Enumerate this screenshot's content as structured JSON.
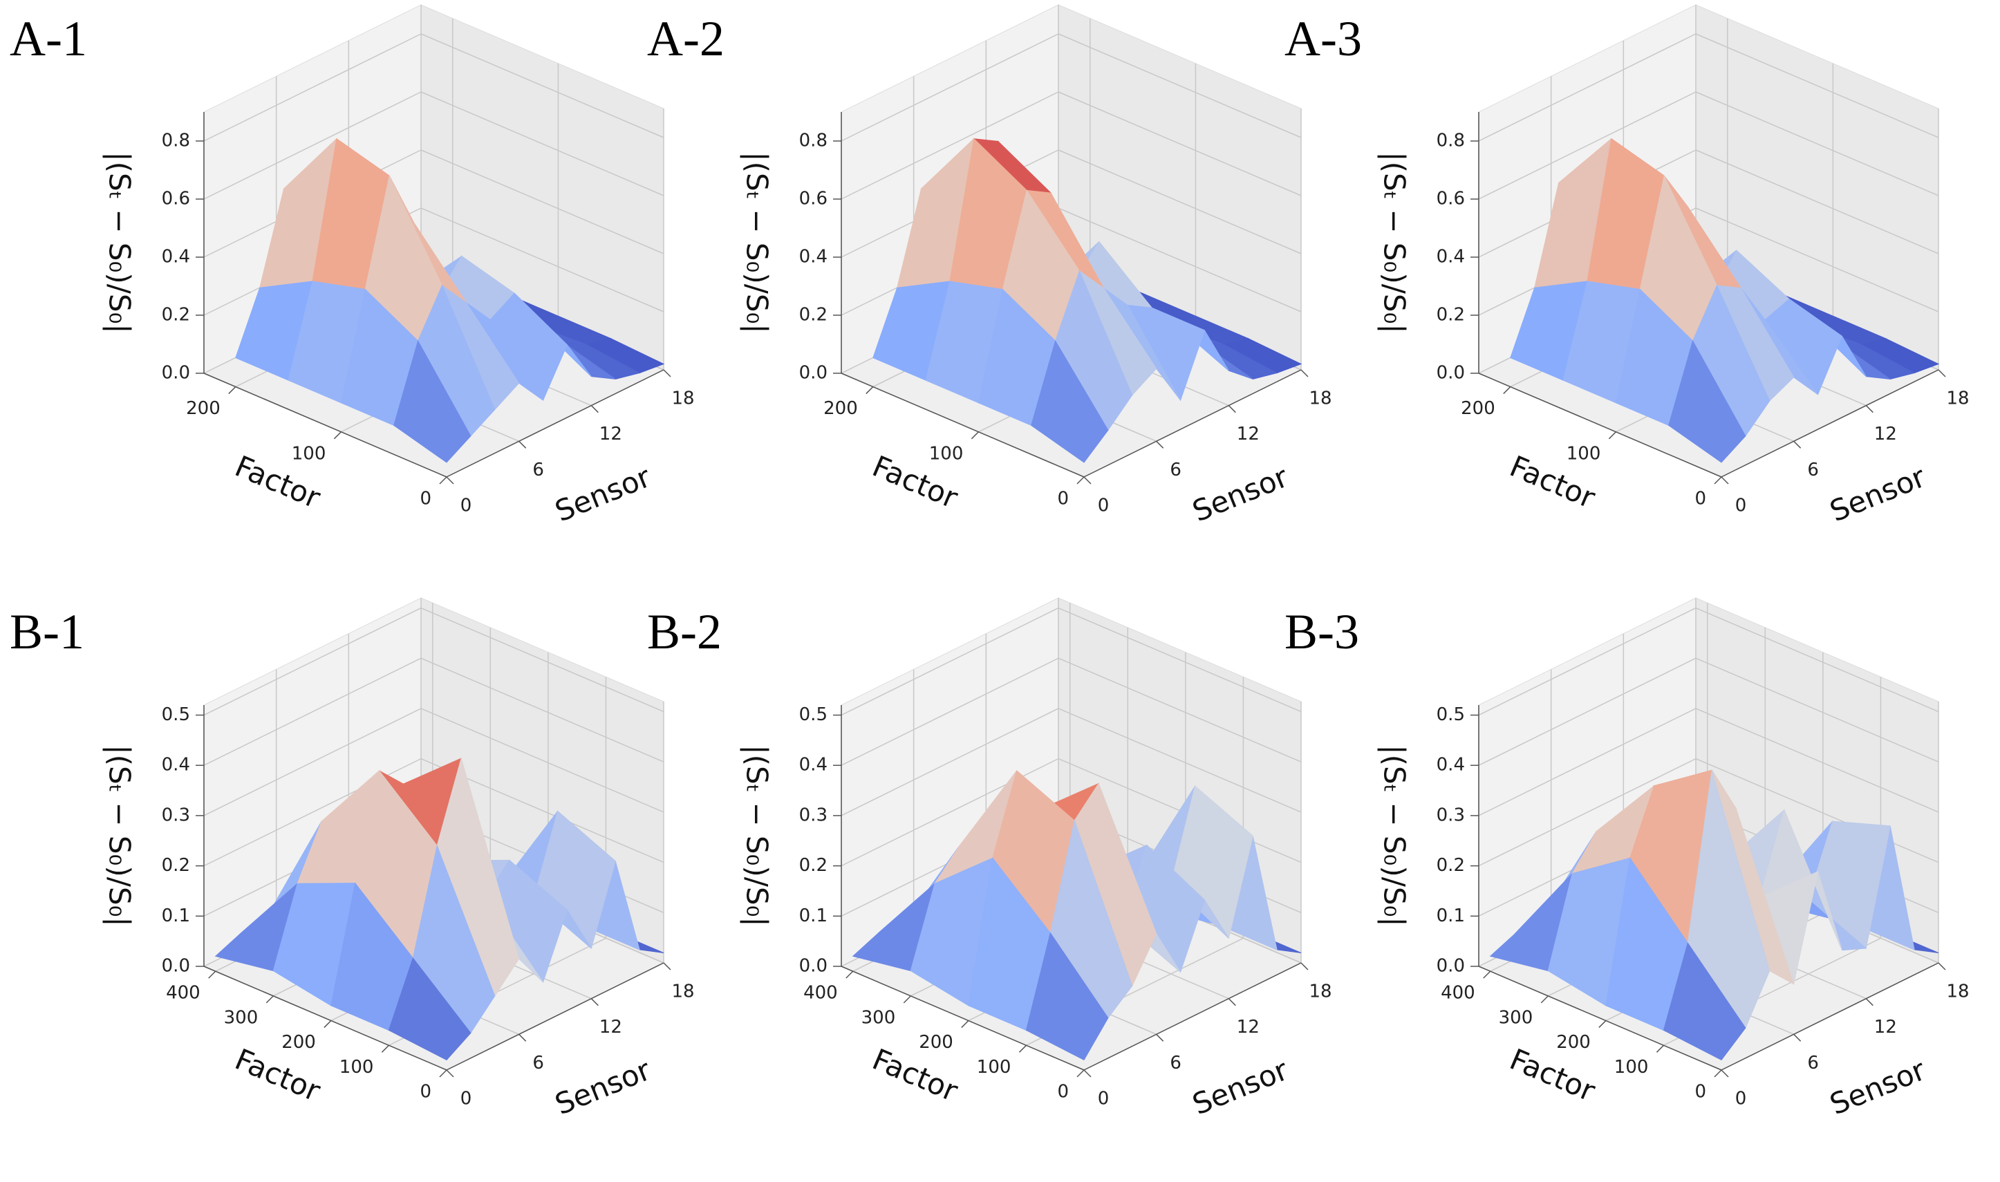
{
  "chart_data": [
    {
      "type": "surface3d",
      "title": "A-1",
      "xlabel": "Factor",
      "ylabel": "Sensor",
      "zlabel": "|(Sₜ − S₀)/S₀|",
      "colormap": "coolwarm",
      "x": [
        0,
        50,
        100,
        150,
        200
      ],
      "y": [
        0,
        2,
        4,
        6,
        8,
        10,
        12,
        14,
        16,
        18
      ],
      "values": [
        [
          0.05,
          0.1,
          0.15,
          0.2,
          0.1,
          0.25,
          0.1,
          0.05,
          0.03,
          0.02
        ],
        [
          0.1,
          0.35,
          0.5,
          0.4,
          0.3,
          0.35,
          0.2,
          0.1,
          0.05,
          0.03
        ],
        [
          0.1,
          0.45,
          0.8,
          0.6,
          0.3,
          0.4,
          0.15,
          0.05,
          0.04,
          0.03
        ],
        [
          0.1,
          0.4,
          0.85,
          0.7,
          0.25,
          0.2,
          0.1,
          0.05,
          0.04,
          0.03
        ],
        [
          0.1,
          0.3,
          0.6,
          0.45,
          0.2,
          0.1,
          0.08,
          0.05,
          0.04,
          0.03
        ]
      ],
      "xlim": [
        0,
        230
      ],
      "ylim": [
        0,
        18
      ],
      "zlim": [
        0,
        0.9
      ],
      "xticks": [
        0,
        100,
        200
      ],
      "yticks": [
        0,
        6,
        12,
        18
      ],
      "zticks": [
        {
          "value": 0,
          "label": "0.0"
        },
        0.2,
        0.4,
        0.6,
        0.8
      ]
    },
    {
      "type": "surface3d",
      "title": "A-2",
      "xlabel": "Factor",
      "ylabel": "Sensor",
      "zlabel": "|(Sₜ − S₀)/S₀|",
      "colormap": "coolwarm",
      "x": [
        0,
        50,
        100,
        150,
        200
      ],
      "y": [
        0,
        2,
        4,
        6,
        8,
        10,
        12,
        14,
        16,
        18
      ],
      "values": [
        [
          0.05,
          0.12,
          0.2,
          0.25,
          0.1,
          0.3,
          0.12,
          0.05,
          0.03,
          0.02
        ],
        [
          0.1,
          0.35,
          0.55,
          0.45,
          0.35,
          0.3,
          0.2,
          0.1,
          0.05,
          0.03
        ],
        [
          0.1,
          0.45,
          0.75,
          0.7,
          0.35,
          0.45,
          0.18,
          0.06,
          0.04,
          0.03
        ],
        [
          0.1,
          0.4,
          0.85,
          0.8,
          0.3,
          0.2,
          0.1,
          0.05,
          0.04,
          0.03
        ],
        [
          0.1,
          0.3,
          0.6,
          0.55,
          0.2,
          0.1,
          0.08,
          0.05,
          0.04,
          0.03
        ]
      ],
      "xlim": [
        0,
        230
      ],
      "ylim": [
        0,
        18
      ],
      "zlim": [
        0,
        0.9
      ],
      "xticks": [
        0,
        100,
        200
      ],
      "yticks": [
        0,
        6,
        12,
        18
      ],
      "zticks": [
        {
          "value": 0,
          "label": "0.0"
        },
        0.2,
        0.4,
        0.6,
        0.8
      ]
    },
    {
      "type": "surface3d",
      "title": "A-3",
      "xlabel": "Factor",
      "ylabel": "Sensor",
      "zlabel": "|(Sₜ − S₀)/S₀|",
      "colormap": "coolwarm",
      "x": [
        0,
        50,
        100,
        150,
        200
      ],
      "y": [
        0,
        2,
        4,
        6,
        8,
        10,
        12,
        14,
        16,
        18
      ],
      "values": [
        [
          0.05,
          0.1,
          0.18,
          0.22,
          0.12,
          0.28,
          0.1,
          0.05,
          0.03,
          0.02
        ],
        [
          0.1,
          0.35,
          0.5,
          0.45,
          0.3,
          0.33,
          0.2,
          0.1,
          0.05,
          0.03
        ],
        [
          0.1,
          0.45,
          0.8,
          0.65,
          0.3,
          0.42,
          0.15,
          0.05,
          0.04,
          0.03
        ],
        [
          0.1,
          0.4,
          0.85,
          0.75,
          0.28,
          0.2,
          0.1,
          0.05,
          0.04,
          0.03
        ],
        [
          0.1,
          0.3,
          0.62,
          0.5,
          0.2,
          0.1,
          0.08,
          0.05,
          0.04,
          0.03
        ]
      ],
      "xlim": [
        0,
        230
      ],
      "ylim": [
        0,
        18
      ],
      "zlim": [
        0,
        0.9
      ],
      "xticks": [
        0,
        100,
        200
      ],
      "yticks": [
        0,
        6,
        12,
        18
      ],
      "zticks": [
        {
          "value": 0,
          "label": "0.0"
        },
        0.2,
        0.4,
        0.6,
        0.8
      ]
    },
    {
      "type": "surface3d",
      "title": "B-1",
      "xlabel": "Factor",
      "ylabel": "Sensor",
      "zlabel": "|(Sₜ − S₀)/S₀|",
      "colormap": "coolwarm",
      "x": [
        0,
        100,
        200,
        300,
        400
      ],
      "y": [
        0,
        2,
        4,
        6,
        8,
        10,
        12,
        14,
        16,
        18
      ],
      "values": [
        [
          0.02,
          0.05,
          0.1,
          0.15,
          0.08,
          0.2,
          0.1,
          0.25,
          0.05,
          0.02
        ],
        [
          0.03,
          0.15,
          0.35,
          0.5,
          0.2,
          0.25,
          0.15,
          0.3,
          0.05,
          0.02
        ],
        [
          0.03,
          0.25,
          0.45,
          0.4,
          0.15,
          0.2,
          0.1,
          0.1,
          0.03,
          0.02
        ],
        [
          0.05,
          0.2,
          0.3,
          0.2,
          0.1,
          0.05,
          0.03,
          0.02,
          0.02,
          0.02
        ],
        [
          0.03,
          0.05,
          0.05,
          0.03,
          0.02,
          0.02,
          0.02,
          0.02,
          0.02,
          0.01
        ]
      ],
      "xlim": [
        0,
        420
      ],
      "ylim": [
        0,
        18
      ],
      "zlim": [
        0,
        0.52
      ],
      "xticks": [
        0,
        100,
        200,
        300,
        400
      ],
      "yticks": [
        0,
        6,
        12,
        18
      ],
      "zticks": [
        {
          "value": 0,
          "label": "0.0"
        },
        0.1,
        0.2,
        0.3,
        0.4,
        0.5
      ]
    },
    {
      "type": "surface3d",
      "title": "B-2",
      "xlabel": "Factor",
      "ylabel": "Sensor",
      "zlabel": "|(Sₜ − S₀)/S₀|",
      "colormap": "coolwarm",
      "x": [
        0,
        100,
        200,
        300,
        400
      ],
      "y": [
        0,
        2,
        4,
        6,
        8,
        10,
        12,
        14,
        16,
        18
      ],
      "values": [
        [
          0.02,
          0.08,
          0.12,
          0.2,
          0.1,
          0.22,
          0.12,
          0.3,
          0.05,
          0.02
        ],
        [
          0.03,
          0.2,
          0.4,
          0.45,
          0.15,
          0.28,
          0.18,
          0.35,
          0.05,
          0.02
        ],
        [
          0.03,
          0.3,
          0.45,
          0.35,
          0.12,
          0.18,
          0.1,
          0.12,
          0.03,
          0.02
        ],
        [
          0.05,
          0.2,
          0.25,
          0.15,
          0.08,
          0.05,
          0.03,
          0.02,
          0.02,
          0.02
        ],
        [
          0.03,
          0.05,
          0.04,
          0.03,
          0.02,
          0.02,
          0.02,
          0.02,
          0.02,
          0.01
        ]
      ],
      "xlim": [
        0,
        420
      ],
      "ylim": [
        0,
        18
      ],
      "zlim": [
        0,
        0.52
      ],
      "xticks": [
        0,
        100,
        200,
        300,
        400
      ],
      "yticks": [
        0,
        6,
        12,
        18
      ],
      "zticks": [
        {
          "value": 0,
          "label": "0.0"
        },
        0.1,
        0.2,
        0.3,
        0.4,
        0.5
      ]
    },
    {
      "type": "surface3d",
      "title": "B-3",
      "xlabel": "Factor",
      "ylabel": "Sensor",
      "zlabel": "|(Sₜ − S₀)/S₀|",
      "colormap": "coolwarm",
      "x": [
        0,
        100,
        200,
        300,
        400
      ],
      "y": [
        0,
        2,
        4,
        6,
        8,
        10,
        12,
        14,
        16,
        18
      ],
      "values": [
        [
          0.02,
          0.06,
          0.15,
          0.1,
          0.3,
          0.12,
          0.1,
          0.32,
          0.05,
          0.02
        ],
        [
          0.03,
          0.18,
          0.5,
          0.4,
          0.2,
          0.35,
          0.15,
          0.28,
          0.05,
          0.02
        ],
        [
          0.03,
          0.3,
          0.42,
          0.38,
          0.15,
          0.2,
          0.1,
          0.1,
          0.03,
          0.02
        ],
        [
          0.05,
          0.22,
          0.28,
          0.18,
          0.08,
          0.05,
          0.03,
          0.02,
          0.02,
          0.02
        ],
        [
          0.03,
          0.05,
          0.05,
          0.03,
          0.02,
          0.02,
          0.02,
          0.02,
          0.02,
          0.01
        ]
      ],
      "xlim": [
        0,
        420
      ],
      "ylim": [
        0,
        18
      ],
      "zlim": [
        0,
        0.52
      ],
      "xticks": [
        0,
        100,
        200,
        300,
        400
      ],
      "yticks": [
        0,
        6,
        12,
        18
      ],
      "zticks": [
        {
          "value": 0,
          "label": "0.0"
        },
        0.1,
        0.2,
        0.3,
        0.4,
        0.5
      ]
    }
  ]
}
